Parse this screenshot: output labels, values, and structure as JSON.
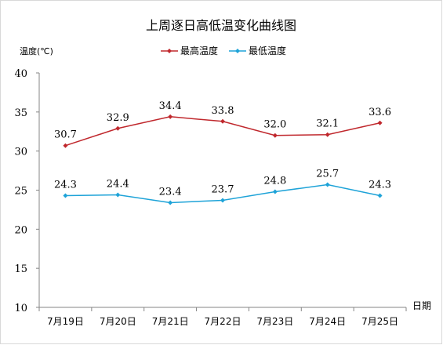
{
  "chart_data": {
    "type": "line",
    "title": "上周逐日高低温变化曲线图",
    "ylabel": "温度(℃)",
    "xlabel": "日期",
    "categories": [
      "7月19日",
      "7月20日",
      "7月21日",
      "7月22日",
      "7月23日",
      "7月24日",
      "7月25日"
    ],
    "ylim": [
      10,
      40
    ],
    "yticks": [
      10,
      15,
      20,
      25,
      30,
      35,
      40
    ],
    "grid": false,
    "legend_position": "top",
    "series": [
      {
        "name": "最高温度",
        "color": "#C0282D",
        "values": [
          30.7,
          32.9,
          34.4,
          33.8,
          32.0,
          32.1,
          33.6
        ],
        "labels": [
          "30.7",
          "32.9",
          "34.4",
          "33.8",
          "32.0",
          "32.1",
          "33.6"
        ]
      },
      {
        "name": "最低温度",
        "color": "#1EA3D8",
        "values": [
          24.3,
          24.4,
          23.4,
          23.7,
          24.8,
          25.7,
          24.3
        ],
        "labels": [
          "24.3",
          "24.4",
          "23.4",
          "23.7",
          "24.8",
          "25.7",
          "24.3"
        ]
      }
    ]
  }
}
